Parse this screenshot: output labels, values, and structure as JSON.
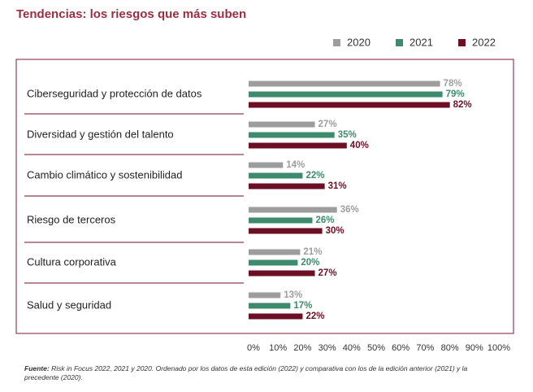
{
  "chart_data": {
    "type": "hbar",
    "title": "Tendencias: los riesgos que más suben",
    "categories": [
      "Ciberseguridad y protección de datos",
      "Diversidad y gestión del talento",
      "Cambio climático y sostenibilidad",
      "Riesgo de terceros",
      "Cultura corporativa",
      "Salud y seguridad"
    ],
    "series": [
      {
        "name": "2020",
        "color": "#9d9d9d",
        "values": [
          78,
          27,
          14,
          36,
          21,
          13
        ],
        "value_labels": [
          "78%",
          "27%",
          "14%",
          "36%",
          "21%",
          "13%"
        ]
      },
      {
        "name": "2021",
        "color": "#3d8a6c",
        "values": [
          79,
          35,
          22,
          26,
          20,
          17
        ],
        "value_labels": [
          "79%",
          "35%",
          "22%",
          "26%",
          "20%",
          "17%"
        ]
      },
      {
        "name": "2022",
        "color": "#6c0f25",
        "values": [
          82,
          40,
          31,
          30,
          27,
          22
        ],
        "value_labels": [
          "82%",
          "40%",
          "31%",
          "30%",
          "27%",
          "22%"
        ]
      }
    ],
    "xlim": [
      0,
      100
    ],
    "xticks": [
      {
        "value": 0,
        "label": "0%"
      },
      {
        "value": 10,
        "label": "10%"
      },
      {
        "value": 20,
        "label": "20%"
      },
      {
        "value": 30,
        "label": "30%"
      },
      {
        "value": 40,
        "label": "40%"
      },
      {
        "value": 50,
        "label": "50%"
      },
      {
        "value": 60,
        "label": "60%"
      },
      {
        "value": 70,
        "label": "70%"
      },
      {
        "value": 80,
        "label": "80%"
      },
      {
        "value": 90,
        "label": "90%"
      },
      {
        "value": 100,
        "label": "100%"
      }
    ],
    "legend_position": "top-right",
    "note_label": "Fuente:",
    "note": "Risk in Focus 2022, 2021 y 2020. Ordenado por los datos de esta edición (2022) y comparativa con los de la edición anterior (2021) y la precedente (2020)."
  }
}
